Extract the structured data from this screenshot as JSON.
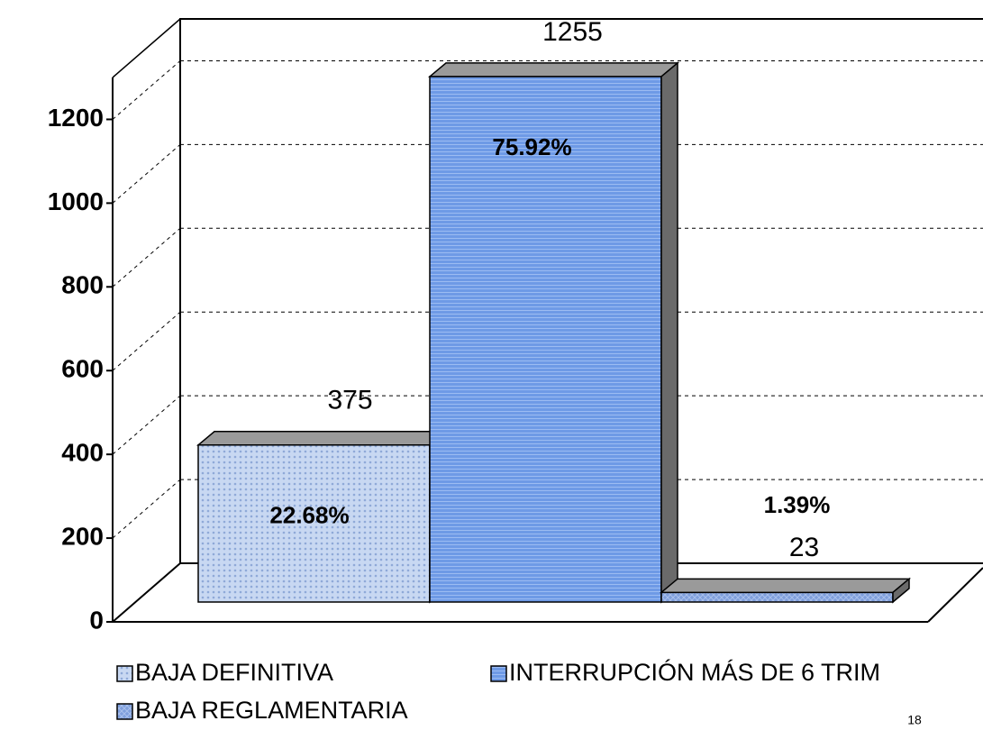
{
  "chart_data": {
    "type": "bar3d",
    "series": [
      {
        "name": "BAJA DEFINITIVA",
        "color": "#b9cdee",
        "values": [
          375
        ],
        "share_label": "22.68%"
      },
      {
        "name": "INTERRUPCIÓN MÁS DE 6 TRIM",
        "color": "#6e9ae6",
        "values": [
          1255
        ],
        "share_label": "75.92%"
      },
      {
        "name": "BAJA REGLAMENTARIA",
        "color": "#7f9fdc",
        "values": [
          23
        ],
        "share_label": "1.39%"
      }
    ],
    "ylim": [
      0,
      1300
    ],
    "yticks": [
      0,
      200,
      400,
      600,
      800,
      1000,
      1200
    ],
    "grid": true
  },
  "page_number": "18"
}
